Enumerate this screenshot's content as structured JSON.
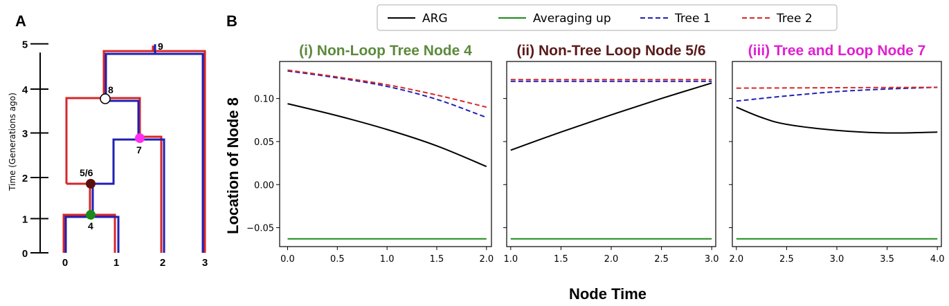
{
  "panel_a": {
    "letter": "A",
    "ylabel": "Time (Generations ago)",
    "y_ticks": [
      "0",
      "1",
      "2",
      "3",
      "4",
      "5"
    ],
    "x_ticks": [
      "0",
      "1",
      "2",
      "3"
    ],
    "node_labels": [
      {
        "text": "9",
        "x": 2.0,
        "t": 5
      },
      {
        "text": "8",
        "x": 0.9,
        "t": 4
      },
      {
        "text": "7",
        "x": 1.6,
        "t": 2.75
      },
      {
        "text": "5/6",
        "x": 0.5,
        "t": 2.2
      },
      {
        "text": "4",
        "x": 0.5,
        "t": 0.7
      }
    ],
    "colors": {
      "tree_red": "#d62728",
      "tree_blue": "#1f1fb4",
      "node4": "#1a8a1a",
      "node56": "#5a1010",
      "node7": "#ff2ef0"
    }
  },
  "panel_b": {
    "letter": "B",
    "ylabel": "Location of Node 8",
    "xlabel": "Node Time",
    "legend": [
      {
        "label": "ARG",
        "color": "#000000",
        "dash": "solid"
      },
      {
        "label": "Averaging up",
        "color": "#1a8a1a",
        "dash": "solid"
      },
      {
        "label": "Tree 1",
        "color": "#1f1fb4",
        "dash": "dashed"
      },
      {
        "label": "Tree 2",
        "color": "#d62728",
        "dash": "dashed"
      }
    ],
    "yticks": [
      "−0.05",
      "0.00",
      "0.05",
      "0.10"
    ]
  },
  "chart_data": [
    {
      "type": "line",
      "title": "(i) Non-Loop Tree Node 4",
      "title_color": "#5b8a3c",
      "xlim": [
        -0.08,
        2.05
      ],
      "ylim": [
        -0.072,
        0.143
      ],
      "xticks": [
        "0.0",
        "0.5",
        "1.0",
        "1.5",
        "2.0"
      ],
      "series": [
        {
          "name": "ARG",
          "x": [
            0.0,
            0.5,
            1.0,
            1.5,
            2.0
          ],
          "y": [
            0.094,
            0.08,
            0.064,
            0.045,
            0.021
          ]
        },
        {
          "name": "Averaging up",
          "x": [
            0.0,
            2.0
          ],
          "y": [
            -0.063,
            -0.063
          ]
        },
        {
          "name": "Tree 1",
          "x": [
            0.0,
            0.5,
            1.0,
            1.5,
            2.0
          ],
          "y": [
            0.132,
            0.124,
            0.114,
            0.099,
            0.078
          ]
        },
        {
          "name": "Tree 2",
          "x": [
            0.0,
            0.5,
            1.0,
            1.5,
            2.0
          ],
          "y": [
            0.133,
            0.125,
            0.116,
            0.104,
            0.09
          ]
        }
      ]
    },
    {
      "type": "line",
      "title": "(ii) Non-Tree Loop Node 5/6",
      "title_color": "#5a1a1a",
      "xlim": [
        0.96,
        3.04
      ],
      "ylim": [
        -0.072,
        0.143
      ],
      "xticks": [
        "1.0",
        "1.5",
        "2.0",
        "2.5",
        "3.0"
      ],
      "series": [
        {
          "name": "ARG",
          "x": [
            1.0,
            1.5,
            2.0,
            2.5,
            3.0
          ],
          "y": [
            0.04,
            0.061,
            0.081,
            0.1,
            0.118
          ]
        },
        {
          "name": "Averaging up",
          "x": [
            1.0,
            3.0
          ],
          "y": [
            -0.063,
            -0.063
          ]
        },
        {
          "name": "Tree 1",
          "x": [
            1.0,
            3.0
          ],
          "y": [
            0.12,
            0.12
          ]
        },
        {
          "name": "Tree 2",
          "x": [
            1.0,
            3.0
          ],
          "y": [
            0.122,
            0.122
          ]
        }
      ]
    },
    {
      "type": "line",
      "title": "(iii) Tree and Loop Node 7",
      "title_color": "#e020d0",
      "xlim": [
        1.96,
        4.04
      ],
      "ylim": [
        -0.072,
        0.143
      ],
      "xticks": [
        "2.0",
        "2.5",
        "3.0",
        "3.5",
        "4.0"
      ],
      "series": [
        {
          "name": "ARG",
          "x": [
            2.0,
            2.25,
            2.5,
            3.0,
            3.5,
            4.0
          ],
          "y": [
            0.09,
            0.078,
            0.07,
            0.063,
            0.06,
            0.061
          ]
        },
        {
          "name": "Averaging up",
          "x": [
            2.0,
            4.0
          ],
          "y": [
            -0.063,
            -0.063
          ]
        },
        {
          "name": "Tree 1",
          "x": [
            2.0,
            2.5,
            3.0,
            3.5,
            4.0
          ],
          "y": [
            0.097,
            0.103,
            0.108,
            0.111,
            0.113
          ]
        },
        {
          "name": "Tree 2",
          "x": [
            2.0,
            4.0
          ],
          "y": [
            0.112,
            0.113
          ]
        }
      ]
    }
  ]
}
